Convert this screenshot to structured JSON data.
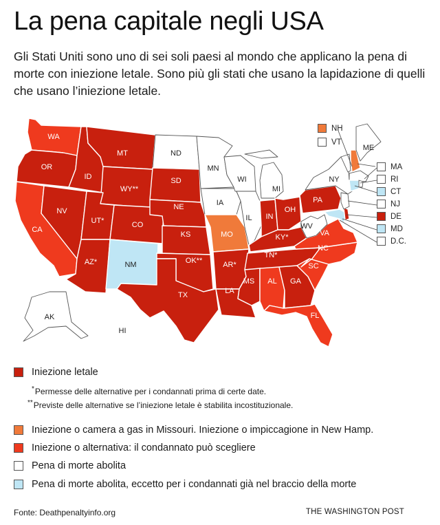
{
  "header": {
    "title": "La pena capitale negli USA",
    "subtitle": "Gli Stati Uniti sono uno di sei soli paesi al mondo che applicano la pena di morte con iniezione letale. Sono più gli stati che usano la lapidazione di quelli che usano l’iniezione letale."
  },
  "colors": {
    "lethal_injection": "#c8200e",
    "gas_or_hanging": "#f07a3a",
    "alternative": "#ef3a1e",
    "abolished": "#ffffff",
    "abolished_except": "#bfe6f5"
  },
  "map": {
    "states": {
      "WA": "WA",
      "OR": "OR",
      "CA": "CA",
      "ID": "ID",
      "NV": "NV",
      "MT": "MT",
      "WY": "WY**",
      "UT": "UT*",
      "AZ": "AZ*",
      "CO": "CO",
      "NM": "NM",
      "ND": "ND",
      "SD": "SD",
      "NE": "NE",
      "KS": "KS",
      "OK": "OK**",
      "TX": "TX",
      "MN": "MN",
      "IA": "IA",
      "MO": "MO",
      "AR": "AR*",
      "LA": "LA",
      "WI": "WI",
      "IL": "IL",
      "MI": "MI",
      "IN": "IN",
      "OH": "OH",
      "KY": "KY*",
      "TN": "TN*",
      "MS": "MS",
      "AL": "AL",
      "GA": "GA",
      "FL": "FL",
      "SC": "SC",
      "NC": "NC",
      "VA": "VA",
      "WV": "WV",
      "PA": "PA",
      "NY": "NY",
      "ME": "ME",
      "AK": "AK",
      "HI": "HI"
    },
    "northeast_legend": [
      {
        "code": "NH",
        "status": "gas_or_hanging"
      },
      {
        "code": "VT",
        "status": "abolished"
      },
      {
        "code": "MA",
        "status": "abolished"
      },
      {
        "code": "RI",
        "status": "abolished"
      },
      {
        "code": "CT",
        "status": "abolished_except"
      },
      {
        "code": "NJ",
        "status": "abolished"
      },
      {
        "code": "DE",
        "status": "lethal_injection"
      },
      {
        "code": "MD",
        "status": "abolished_except"
      },
      {
        "code": "D.C.",
        "status": "abolished"
      }
    ]
  },
  "legend": {
    "items": [
      {
        "label": "Iniezione letale",
        "status": "lethal_injection"
      },
      {
        "label": "Iniezione o camera a gas in Missouri. Iniezione o impiccagione in New Hamp.",
        "status": "gas_or_hanging"
      },
      {
        "label": "Iniezione o alternativa: il condannato può scegliere",
        "status": "alternative"
      },
      {
        "label": "Pena di morte abolita",
        "status": "abolished"
      },
      {
        "label": "Pena di morte abolita, eccetto per i condannati già nel braccio della morte",
        "status": "abolished_except"
      }
    ],
    "notes": [
      {
        "mark": "*",
        "text": "Permesse delle alternative per i condannati prima di certe date."
      },
      {
        "mark": "**",
        "text": "Previste delle alternative se l’iniezione letale è stabilita incostituzionale."
      }
    ]
  },
  "footer": {
    "source": "Fonte: Deathpenaltyinfo.org",
    "brand": "THE WASHINGTON POST"
  }
}
